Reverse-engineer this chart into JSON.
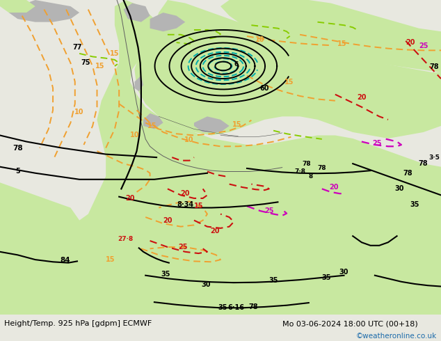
{
  "title_left": "Height/Temp. 925 hPa [gdpm] ECMWF",
  "title_right": "Mo 03-06-2024 18:00 UTC (00+18)",
  "watermark": "©weatheronline.co.uk",
  "watermark_color": "#1a6aaa",
  "fig_width": 6.34,
  "fig_height": 4.9,
  "dpi": 100,
  "bottom_text_color": "#000000",
  "bottom_bg_color": "#c8c8c8",
  "map_bg": "#e8e8e0",
  "land_green": "#c8e8a0",
  "land_gray": "#b4b4b4",
  "sea_gray": "#d0d0d0",
  "orange": "#f0a030",
  "red": "#cc1010",
  "magenta": "#cc00bb",
  "cyan": "#00aaaa",
  "lime": "#88cc00",
  "black": "#000000"
}
